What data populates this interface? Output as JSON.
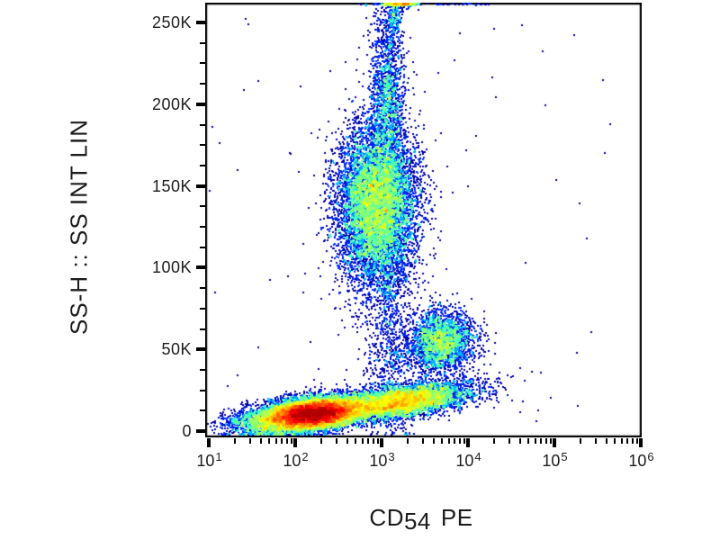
{
  "figure": {
    "y_axis_title": "SS-H :: SS INT LIN",
    "x_axis_title": {
      "prefix": "CD",
      "subscript": "54",
      "fluorochrome": "PE"
    },
    "y_tick_labels": [
      "0",
      "50K",
      "100K",
      "150K",
      "200K",
      "250K"
    ],
    "x_tick_base": "10",
    "x_tick_exponents": [
      "1",
      "2",
      "3",
      "4",
      "5",
      "6"
    ],
    "axis_color": "#000000",
    "text_color": "#1c1c1c",
    "background_color": "#ffffff"
  },
  "chart_data": {
    "type": "scatter",
    "subtype": "flow-cytometry-pseudocolor-density-plot",
    "title": "",
    "xlabel": "CD54 PE",
    "ylabel": "SS-H :: SS INT LIN",
    "x_scale": "log10",
    "x_range": [
      9,
      1000000
    ],
    "x_tick_values": [
      10,
      100,
      1000,
      10000,
      100000,
      1000000
    ],
    "y_scale": "linear",
    "y_range": [
      -4000,
      262000
    ],
    "y_tick_values": [
      0,
      50000,
      100000,
      150000,
      200000,
      250000
    ],
    "y_minor_tick_step": 12500,
    "grid": false,
    "legend": "none",
    "colormap": "jet-density",
    "colormap_stops": [
      "#000080",
      "#0000ff",
      "#00ffff",
      "#00ff00",
      "#ffff00",
      "#ff8000",
      "#ff0000"
    ],
    "populations": [
      {
        "name": "ss-high-vertical-cluster-main",
        "n": 9000,
        "x_log_mean": 2.94,
        "x_log_sd": 0.23,
        "y_mean": 138000,
        "y_sd": 24000,
        "y_slope_per_decade": 0
      },
      {
        "name": "ss-high-cluster-upper-neck",
        "n": 1600,
        "x_log_mean": 3.07,
        "x_log_sd": 0.1,
        "y_mean": 205000,
        "y_sd": 30000,
        "y_slope_per_decade": 0
      },
      {
        "name": "top-edge-subcluster",
        "n": 170,
        "x_log_mean": 3.14,
        "x_log_sd": 0.045,
        "y_mean": 254000,
        "y_sd": 6000,
        "y_slope_per_decade": 0
      },
      {
        "name": "top-edge-pileup-streak",
        "n": 300,
        "x_log_mean": 3.22,
        "x_log_sd": 0.1,
        "y_mean": 267000,
        "y_sd": 4000,
        "y_slope_per_decade": 0
      },
      {
        "name": "top-edge-scatter",
        "n": 45,
        "uniform": true,
        "x_log_range": [
          2.7,
          4.4
        ],
        "y_range": [
          262000,
          268000
        ]
      },
      {
        "name": "cd54-positive-mid-cluster",
        "n": 2600,
        "x_log_mean": 3.69,
        "x_log_sd": 0.19,
        "y_mean": 54500,
        "y_sd": 9500,
        "y_slope_per_decade": 0
      },
      {
        "name": "bottom-band-core",
        "n": 15000,
        "x_log_mean": 2.2,
        "x_log_sd": 0.27,
        "y_mean": 10500,
        "y_sd": 4500,
        "y_slope_per_decade": 5000
      },
      {
        "name": "bottom-band-right-arm",
        "n": 6500,
        "x_log_mean": 3.2,
        "x_log_sd": 0.4,
        "y_mean": 18000,
        "y_sd": 4800,
        "y_slope_per_decade": 7000
      },
      {
        "name": "bottom-left-debris",
        "n": 1100,
        "x_log_mean": 1.6,
        "x_log_sd": 0.22,
        "y_mean": 5000,
        "y_sd": 4500,
        "y_slope_per_decade": 0
      },
      {
        "name": "vertical-bridge-scatter",
        "n": 800,
        "x_log_mean": 3.08,
        "x_log_sd": 0.14,
        "y_mean": 55000,
        "y_sd": 32000,
        "y_slope_per_decade": 0
      },
      {
        "name": "background-scatter",
        "n": 70,
        "uniform": true,
        "x_log_range": [
          1.0,
          5.7
        ],
        "y_range": [
          0,
          258000
        ]
      }
    ]
  }
}
